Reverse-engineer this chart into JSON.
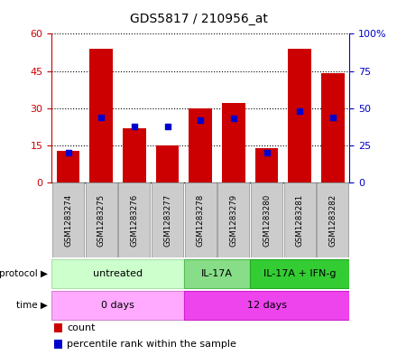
{
  "title": "GDS5817 / 210956_at",
  "samples": [
    "GSM1283274",
    "GSM1283275",
    "GSM1283276",
    "GSM1283277",
    "GSM1283278",
    "GSM1283279",
    "GSM1283280",
    "GSM1283281",
    "GSM1283282"
  ],
  "counts": [
    13,
    54,
    22,
    15,
    30,
    32,
    14,
    54,
    44
  ],
  "percentiles": [
    20,
    44,
    38,
    38,
    42,
    43,
    20,
    48,
    44
  ],
  "ylim_left": [
    0,
    60
  ],
  "ylim_right": [
    0,
    100
  ],
  "yticks_left": [
    0,
    15,
    30,
    45,
    60
  ],
  "ytick_labels_right": [
    "0",
    "25",
    "50",
    "75",
    "100%"
  ],
  "bar_color": "#cc0000",
  "percentile_color": "#0000cc",
  "protocol_groups": [
    {
      "label": "untreated",
      "start": 0,
      "end": 4,
      "color": "#ccffcc",
      "border": "#aaddaa"
    },
    {
      "label": "IL-17A",
      "start": 4,
      "end": 6,
      "color": "#88dd88",
      "border": "#55bb55"
    },
    {
      "label": "IL-17A + IFN-g",
      "start": 6,
      "end": 9,
      "color": "#33cc33",
      "border": "#22aa22"
    }
  ],
  "time_groups": [
    {
      "label": "0 days",
      "start": 0,
      "end": 4,
      "color": "#ffaaff",
      "border": "#cc88cc"
    },
    {
      "label": "12 days",
      "start": 4,
      "end": 9,
      "color": "#ee44ee",
      "border": "#cc22cc"
    }
  ],
  "legend_count_label": "count",
  "legend_percentile_label": "percentile rank within the sample",
  "background_color": "#ffffff",
  "plot_bg_color": "#ffffff",
  "axis_color_left": "#cc0000",
  "axis_color_right": "#0000cc",
  "sample_box_color": "#cccccc",
  "sample_box_edge": "#999999"
}
